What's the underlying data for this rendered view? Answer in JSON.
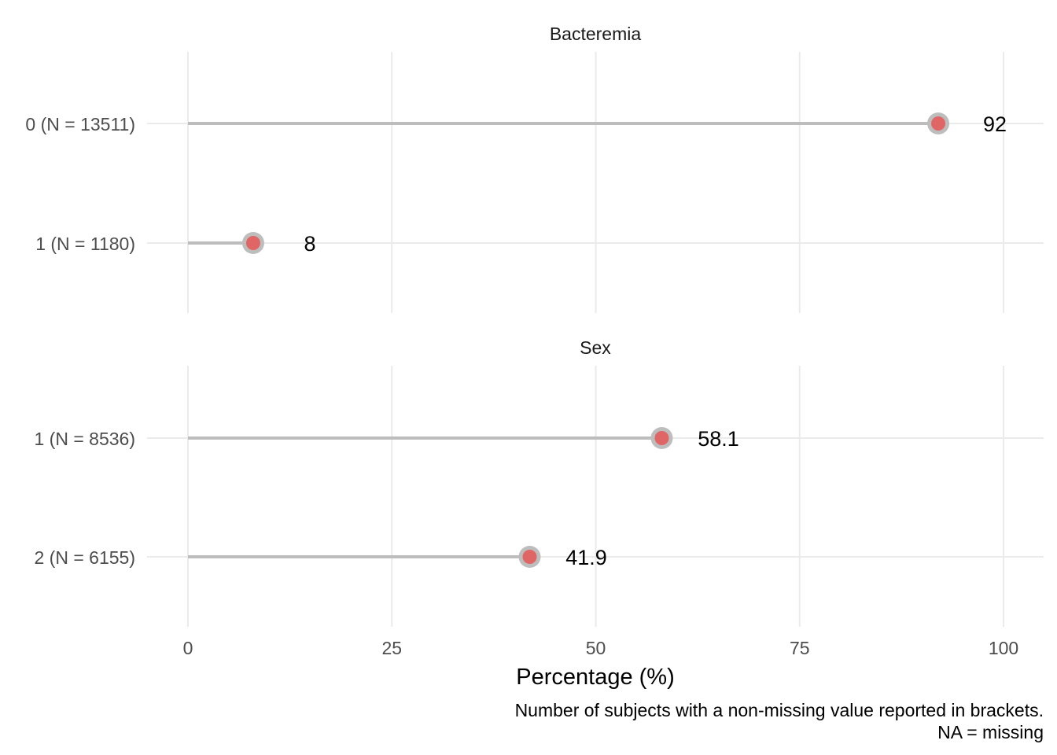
{
  "chart_data": {
    "type": "lollipop",
    "xlabel": "Percentage (%)",
    "xlim": [
      0,
      100
    ],
    "xticks": [
      0,
      25,
      50,
      75,
      100
    ],
    "grid": true,
    "caption": [
      "Number of subjects with a non-missing value reported in brackets.",
      "NA = missing"
    ],
    "panels": [
      {
        "title": "Bacteremia",
        "categories": [
          "0 (N = 13511)",
          "1 (N = 1180)"
        ],
        "values": [
          92,
          8
        ],
        "labels": [
          "92",
          "8"
        ]
      },
      {
        "title": "Sex",
        "categories": [
          "1 (N = 8536)",
          "2 (N = 6155)"
        ],
        "values": [
          58.1,
          41.9
        ],
        "labels": [
          "58.1",
          "41.9"
        ]
      }
    ],
    "colors": {
      "point": "#e06666",
      "halo": "#bdbdbd",
      "stem": "#bdbdbd",
      "grid": "#ebebeb"
    }
  }
}
